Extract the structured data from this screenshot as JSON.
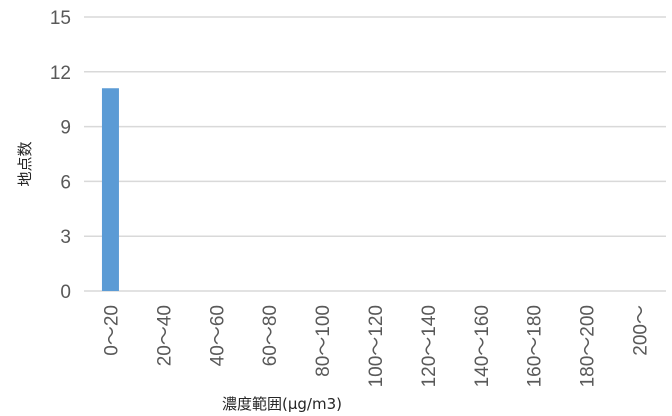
{
  "chart_data": {
    "type": "bar",
    "categories": [
      "0～20",
      "20～40",
      "40～60",
      "60～80",
      "80～100",
      "100～120",
      "120～140",
      "140～160",
      "160～180",
      "180～200",
      "200～"
    ],
    "values": [
      11.1,
      0,
      0,
      0,
      0,
      0,
      0,
      0,
      0,
      0,
      0
    ],
    "xlabel": "濃度範囲(μg/m3)",
    "ylabel": "地点数",
    "ylim": [
      0,
      15
    ],
    "yticks": [
      0,
      3,
      6,
      9,
      12,
      15
    ],
    "grid": true,
    "legend": "none",
    "bar_color": "#5b9bd5",
    "grid_color": "#d9d9d9"
  }
}
